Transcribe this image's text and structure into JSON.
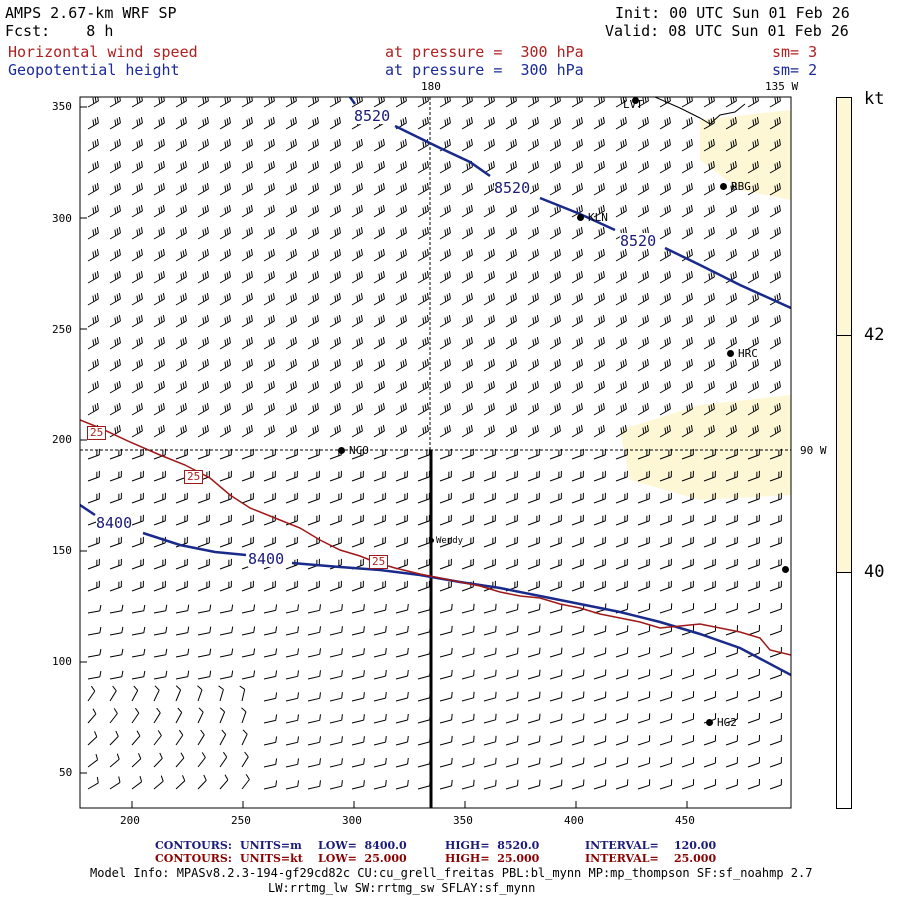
{
  "header": {
    "model": "AMPS 2.67-km WRF SP",
    "fcst": "Fcst:    8 h",
    "init": "Init: 00 UTC Sun 01 Feb 26",
    "valid": "Valid: 08 UTC Sun 01 Feb 26",
    "field1": {
      "name": "Horizontal wind speed",
      "level": "at pressure =  300 hPa",
      "sm": "sm= 3"
    },
    "field2": {
      "name": "Geopotential height",
      "level": "at pressure =  300 hPa",
      "sm": "sm= 2"
    }
  },
  "map": {
    "meridian_labels": {
      "top_180": "180",
      "top_135w": "135 W",
      "right_90w": "90 W"
    },
    "x_ticks": [
      "200",
      "250",
      "300",
      "350",
      "400",
      "450"
    ],
    "y_ticks": [
      "350",
      "300",
      "250",
      "200",
      "150",
      "100",
      "50"
    ],
    "stations": [
      "LVT",
      "RBG",
      "KLN",
      "HRC",
      "NCO",
      "Wendy",
      "HG2"
    ],
    "height_contour_labels": [
      "8520",
      "8520",
      "8520",
      "8400",
      "8400"
    ],
    "wind_contour_labels": [
      "25",
      "25",
      "25"
    ]
  },
  "colorbar": {
    "unit": "kt",
    "labels": [
      "42",
      "40"
    ],
    "colors": {
      "shade": "#fdf7d6",
      "fill": "#ffffff"
    }
  },
  "footer": {
    "line1": {
      "contours": "CONTOURS:",
      "units": "UNITS=m",
      "low": "LOW=  8400.0",
      "high": "HIGH=  8520.0",
      "interval": "INTERVAL=    120.00"
    },
    "line2": {
      "contours": "CONTOURS:",
      "units": "UNITS=kt",
      "low": "LOW=  25.000",
      "high": "HIGH=  25.000",
      "interval": "INTERVAL=    25.000"
    },
    "model_info": "Model Info: MPASv8.2.3-194-gf29cd82c CU:cu_grell_freitas PBL:bl_mynn MP:mp_thompson SF:sf_noahmp 2.7",
    "model_info2": "LW:rrtmg_lw SW:rrtmg_sw SFLAY:sf_mynn"
  },
  "colors": {
    "height_contour": "#1a2a8a",
    "wind_contour": "#a01818",
    "barb": "#000000"
  }
}
